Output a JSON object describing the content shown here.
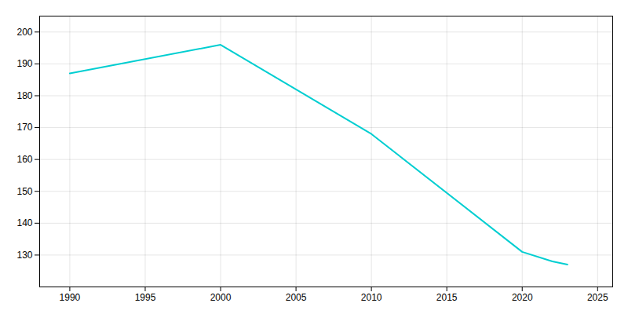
{
  "chart_data": {
    "type": "line",
    "x": [
      1990,
      2000,
      2010,
      2020,
      2022,
      2023
    ],
    "values": [
      187,
      196,
      168,
      131,
      128,
      127
    ],
    "color": "#00CED1",
    "xlim": [
      1988,
      2026
    ],
    "ylim": [
      120,
      205
    ],
    "xticks": [
      1990,
      1995,
      2000,
      2005,
      2010,
      2015,
      2020,
      2025
    ],
    "yticks": [
      130,
      140,
      150,
      160,
      170,
      180,
      190,
      200
    ],
    "grid": true
  }
}
